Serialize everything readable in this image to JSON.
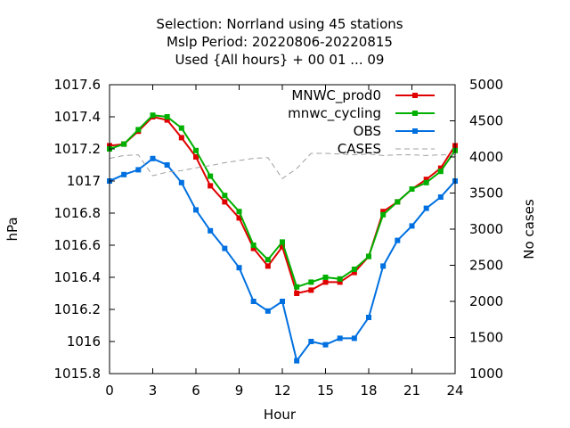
{
  "chart_data": {
    "type": "line",
    "title_lines": [
      "Selection: Norrland using    45 stations",
      "Mslp   Period: 20220806-20220815",
      "Used {All hours} + 00 01 ... 09"
    ],
    "xlabel": "Hour",
    "ylabel": "hPa",
    "y2label": "No cases",
    "xlim": [
      0,
      24
    ],
    "ylim": [
      1015.8,
      1017.6
    ],
    "y2lim": [
      1000,
      5000
    ],
    "xticks": [
      0,
      3,
      6,
      9,
      12,
      15,
      18,
      21,
      24
    ],
    "yticks": [
      1015.8,
      1016,
      1016.2,
      1016.4,
      1016.6,
      1016.8,
      1017,
      1017.2,
      1017.4,
      1017.6
    ],
    "ytick_labels": [
      "1015.8",
      "1016",
      "1016.2",
      "1016.4",
      "1016.6",
      "1016.8",
      "1017",
      "1017.2",
      "1017.4",
      "1017.6"
    ],
    "y2ticks": [
      1000,
      1500,
      2000,
      2500,
      3000,
      3500,
      4000,
      4500,
      5000
    ],
    "legend_position": "top-right",
    "x": [
      0,
      1,
      2,
      3,
      4,
      5,
      6,
      7,
      8,
      9,
      10,
      11,
      12,
      13,
      14,
      15,
      16,
      17,
      18,
      19,
      20,
      21,
      22,
      23,
      24
    ],
    "series": [
      {
        "name": "MNWC_prod0",
        "color": "#e00000",
        "marker": "square",
        "axis": "left",
        "values": [
          1017.22,
          1017.23,
          1017.31,
          1017.4,
          1017.38,
          1017.27,
          1017.15,
          1016.97,
          1016.87,
          1016.77,
          1016.58,
          1016.47,
          1016.59,
          1016.3,
          1016.32,
          1016.37,
          1016.37,
          1016.43,
          1016.53,
          1016.81,
          1016.87,
          1016.95,
          1017.01,
          1017.08,
          1017.22
        ]
      },
      {
        "name": "mnwc_cycling",
        "color": "#00b000",
        "marker": "square",
        "axis": "left",
        "values": [
          1017.2,
          1017.23,
          1017.32,
          1017.41,
          1017.4,
          1017.33,
          1017.19,
          1017.03,
          1016.91,
          1016.81,
          1016.6,
          1016.51,
          1016.62,
          1016.34,
          1016.37,
          1016.4,
          1016.39,
          1016.45,
          1016.53,
          1016.79,
          1016.87,
          1016.95,
          1016.99,
          1017.06,
          1017.19
        ]
      },
      {
        "name": "OBS",
        "color": "#0070e0",
        "marker": "square",
        "axis": "left",
        "values": [
          1017.0,
          1017.04,
          1017.07,
          1017.14,
          1017.1,
          1016.99,
          1016.82,
          1016.69,
          1016.58,
          1016.46,
          1016.25,
          1016.19,
          1016.25,
          1015.88,
          1016.0,
          1015.98,
          1016.02,
          1016.02,
          1016.15,
          1016.47,
          1016.63,
          1016.72,
          1016.83,
          1016.9,
          1017.0
        ]
      },
      {
        "name": "CASES",
        "color": "#a0a0a0",
        "marker": "none",
        "dashed": true,
        "axis": "right",
        "values": [
          3980,
          4020,
          4030,
          3740,
          3790,
          3810,
          3850,
          3880,
          3920,
          3950,
          3980,
          3990,
          3700,
          3840,
          4050,
          4050,
          4040,
          4030,
          4040,
          4020,
          4030,
          4030,
          4020,
          4030,
          4030
        ]
      }
    ]
  }
}
